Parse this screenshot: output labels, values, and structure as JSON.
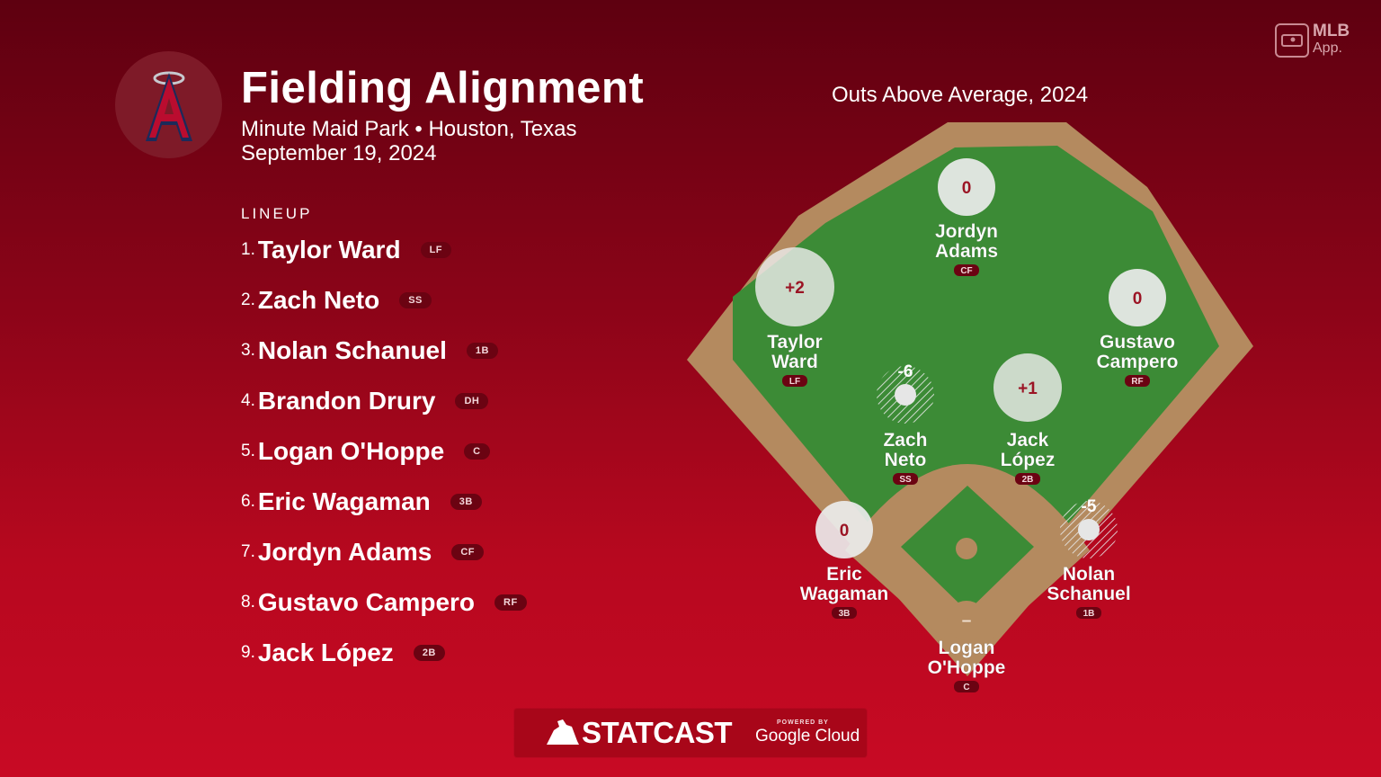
{
  "header": {
    "title": "Fielding Alignment",
    "subtitle": "Minute Maid Park • Houston, Texas",
    "date": "September 19, 2024",
    "team_logo": "angels-logo",
    "team_logo_letter": "A"
  },
  "badge": {
    "line1": "MLB",
    "line2": "App."
  },
  "lineup": {
    "heading": "LINEUP",
    "players": [
      {
        "num": "1.",
        "name": "Taylor Ward",
        "pos": "LF"
      },
      {
        "num": "2.",
        "name": "Zach Neto",
        "pos": "SS"
      },
      {
        "num": "3.",
        "name": "Nolan Schanuel",
        "pos": "1B"
      },
      {
        "num": "4.",
        "name": "Brandon Drury",
        "pos": "DH"
      },
      {
        "num": "5.",
        "name": "Logan O'Hoppe",
        "pos": "C"
      },
      {
        "num": "6.",
        "name": "Eric Wagaman",
        "pos": "3B"
      },
      {
        "num": "7.",
        "name": "Jordyn Adams",
        "pos": "CF"
      },
      {
        "num": "8.",
        "name": "Gustavo Campero",
        "pos": "RF"
      },
      {
        "num": "9.",
        "name": "Jack López",
        "pos": "2B"
      }
    ]
  },
  "field": {
    "title": "Outs Above Average, 2024",
    "colors": {
      "grass": "#3c8b36",
      "dirt": "#b48a5f",
      "bubble_positive": "#e8e8e8",
      "bubble_negative": "#e8e8e8"
    },
    "positions": [
      {
        "pos": "CF",
        "first": "Jordyn",
        "last": "Adams",
        "oaa": "0",
        "value": 0
      },
      {
        "pos": "LF",
        "first": "Taylor",
        "last": "Ward",
        "oaa": "+2",
        "value": 2
      },
      {
        "pos": "RF",
        "first": "Gustavo",
        "last": "Campero",
        "oaa": "0",
        "value": 0
      },
      {
        "pos": "SS",
        "first": "Zach",
        "last": "Neto",
        "oaa": "-6",
        "value": -6
      },
      {
        "pos": "2B",
        "first": "Jack",
        "last": "López",
        "oaa": "+1",
        "value": 1
      },
      {
        "pos": "3B",
        "first": "Eric",
        "last": "Wagaman",
        "oaa": "0",
        "value": 0
      },
      {
        "pos": "1B",
        "first": "Nolan",
        "last": "Schanuel",
        "oaa": "-5",
        "value": -5
      },
      {
        "pos": "C",
        "first": "Logan",
        "last": "O'Hoppe",
        "oaa": "–",
        "value": null
      }
    ]
  },
  "footer": {
    "brand": "STATCAST",
    "powered_by": "POWERED BY",
    "partner": "Google Cloud"
  }
}
